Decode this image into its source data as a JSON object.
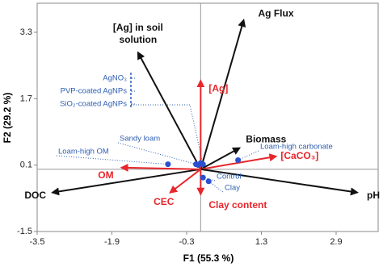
{
  "chart_data": {
    "type": "biplot",
    "x_label": "F1 (55.3 %)",
    "y_label": "F2 (29.2 %)",
    "xlim": [
      -3.5,
      3.8
    ],
    "ylim": [
      -1.5,
      4.0
    ],
    "xticks": [
      -3.5,
      -1.9,
      -0.3,
      1.3,
      2.9
    ],
    "yticks": [
      -1.5,
      0.1,
      1.7,
      3.3
    ],
    "vectors": [
      {
        "name": "Ag Flux",
        "color": "#111111",
        "x": 0.92,
        "y": 3.59
      },
      {
        "name": "[Ag] in soil solution",
        "color": "#111111",
        "x": -1.34,
        "y": 2.81
      },
      {
        "name": "[Ag]",
        "color": "#e8262b",
        "x": 0.0,
        "y": 2.13
      },
      {
        "name": "Biomass",
        "color": "#111111",
        "x": 0.83,
        "y": 0.51
      },
      {
        "name": "[CaCO₃]",
        "color": "#e8262b",
        "x": 1.61,
        "y": 0.31
      },
      {
        "name": "pH",
        "color": "#111111",
        "x": 3.35,
        "y": -0.56
      },
      {
        "name": "DOC",
        "color": "#111111",
        "x": -3.17,
        "y": -0.56
      },
      {
        "name": "OM",
        "color": "#e8262b",
        "x": -1.69,
        "y": 0.04
      },
      {
        "name": "CEC",
        "color": "#e8262b",
        "x": -0.65,
        "y": -0.56
      },
      {
        "name": "Clay content",
        "color": "#e8262b",
        "x": 0.0,
        "y": -0.6
      }
    ],
    "points_color": "#2a4fd0",
    "points": [
      {
        "name": "AgNO₃",
        "x": 0.0,
        "y": 0.15
      },
      {
        "name": "PVP-coated AgNPs",
        "x": 0.05,
        "y": 0.12
      },
      {
        "name": "SiO₂-coated AgNPs",
        "x": -0.05,
        "y": 0.1
      },
      {
        "name": "Sandy loam",
        "x": -0.1,
        "y": 0.12
      },
      {
        "name": "Loam-high OM",
        "x": -0.7,
        "y": 0.12
      },
      {
        "name": "Loam-high carbonate",
        "x": 0.8,
        "y": 0.22
      },
      {
        "name": "Control",
        "x": 0.05,
        "y": -0.2
      },
      {
        "name": "Clay",
        "x": 0.17,
        "y": -0.29
      }
    ]
  }
}
